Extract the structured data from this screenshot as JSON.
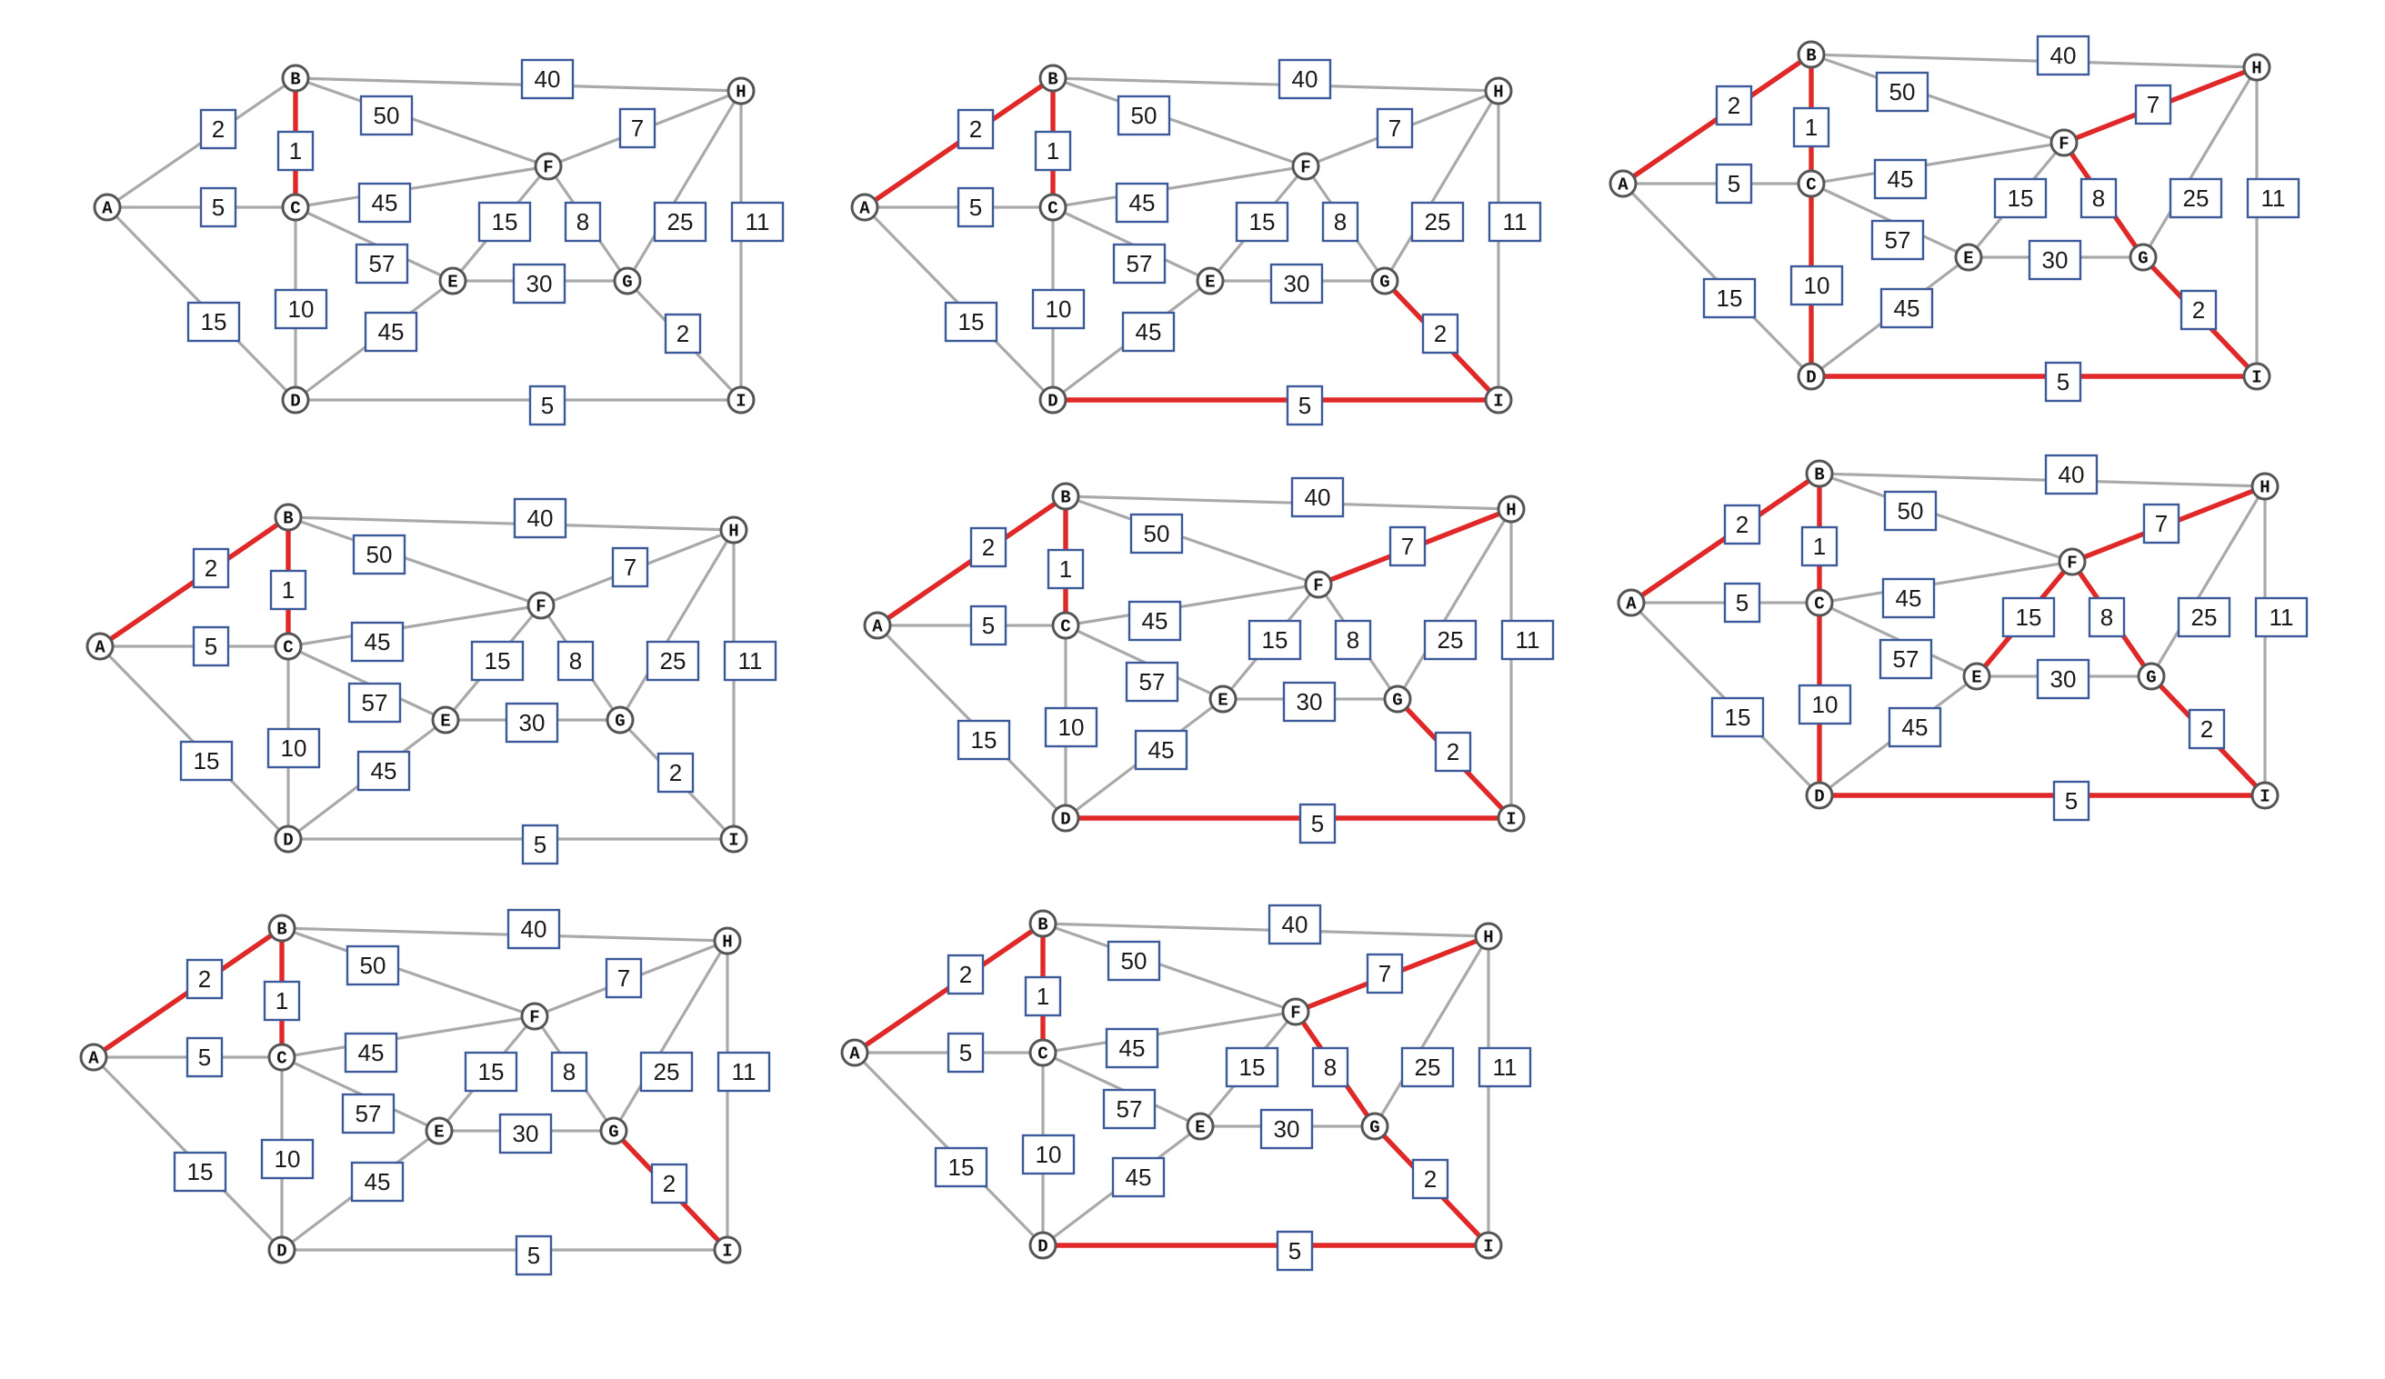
{
  "node_labels": {
    "A": "A",
    "B": "B",
    "C": "C",
    "D": "D",
    "E": "E",
    "F": "F",
    "G": "G",
    "H": "H",
    "I": "I"
  },
  "edges": [
    {
      "id": "AB",
      "from": "A",
      "to": "B",
      "weight": "2"
    },
    {
      "id": "AC",
      "from": "A",
      "to": "C",
      "weight": "5"
    },
    {
      "id": "AD",
      "from": "A",
      "to": "D",
      "weight": "15"
    },
    {
      "id": "BC",
      "from": "B",
      "to": "C",
      "weight": "1"
    },
    {
      "id": "BH",
      "from": "B",
      "to": "H",
      "weight": "40"
    },
    {
      "id": "BF",
      "from": "B",
      "to": "F",
      "weight": "50"
    },
    {
      "id": "CF",
      "from": "C",
      "to": "F",
      "weight": "45"
    },
    {
      "id": "CE",
      "from": "C",
      "to": "E",
      "weight": "57"
    },
    {
      "id": "CD",
      "from": "C",
      "to": "D",
      "weight": "10"
    },
    {
      "id": "DE",
      "from": "D",
      "to": "E",
      "weight": "45"
    },
    {
      "id": "DI",
      "from": "D",
      "to": "I",
      "weight": "5"
    },
    {
      "id": "EF",
      "from": "E",
      "to": "F",
      "weight": "15"
    },
    {
      "id": "EG",
      "from": "E",
      "to": "G",
      "weight": "30"
    },
    {
      "id": "FG",
      "from": "F",
      "to": "G",
      "weight": "8"
    },
    {
      "id": "FH",
      "from": "F",
      "to": "H",
      "weight": "7"
    },
    {
      "id": "GH",
      "from": "G",
      "to": "H",
      "weight": "25"
    },
    {
      "id": "GI",
      "from": "G",
      "to": "I",
      "weight": "2"
    },
    {
      "id": "HI",
      "from": "H",
      "to": "I",
      "weight": "11"
    }
  ],
  "panels": [
    {
      "highlighted_edges": [
        "BC"
      ]
    },
    {
      "highlighted_edges": [
        "AB",
        "BC",
        "DI",
        "GI"
      ]
    },
    {
      "highlighted_edges": [
        "AB",
        "BC",
        "CD",
        "DI",
        "GI",
        "FG",
        "FH"
      ]
    },
    {
      "highlighted_edges": [
        "AB",
        "BC"
      ]
    },
    {
      "highlighted_edges": [
        "AB",
        "BC",
        "DI",
        "GI",
        "FH"
      ]
    },
    {
      "highlighted_edges": [
        "AB",
        "BC",
        "CD",
        "DI",
        "GI",
        "FG",
        "FH",
        "EF"
      ]
    },
    {
      "highlighted_edges": [
        "AB",
        "BC",
        "GI"
      ]
    },
    {
      "highlighted_edges": [
        "AB",
        "BC",
        "DI",
        "GI",
        "FG",
        "FH"
      ]
    }
  ],
  "colors": {
    "edge": "#a9a9a9",
    "highlight": "#e02828",
    "label_border": "#3c5a99",
    "node_border": "#555555"
  }
}
